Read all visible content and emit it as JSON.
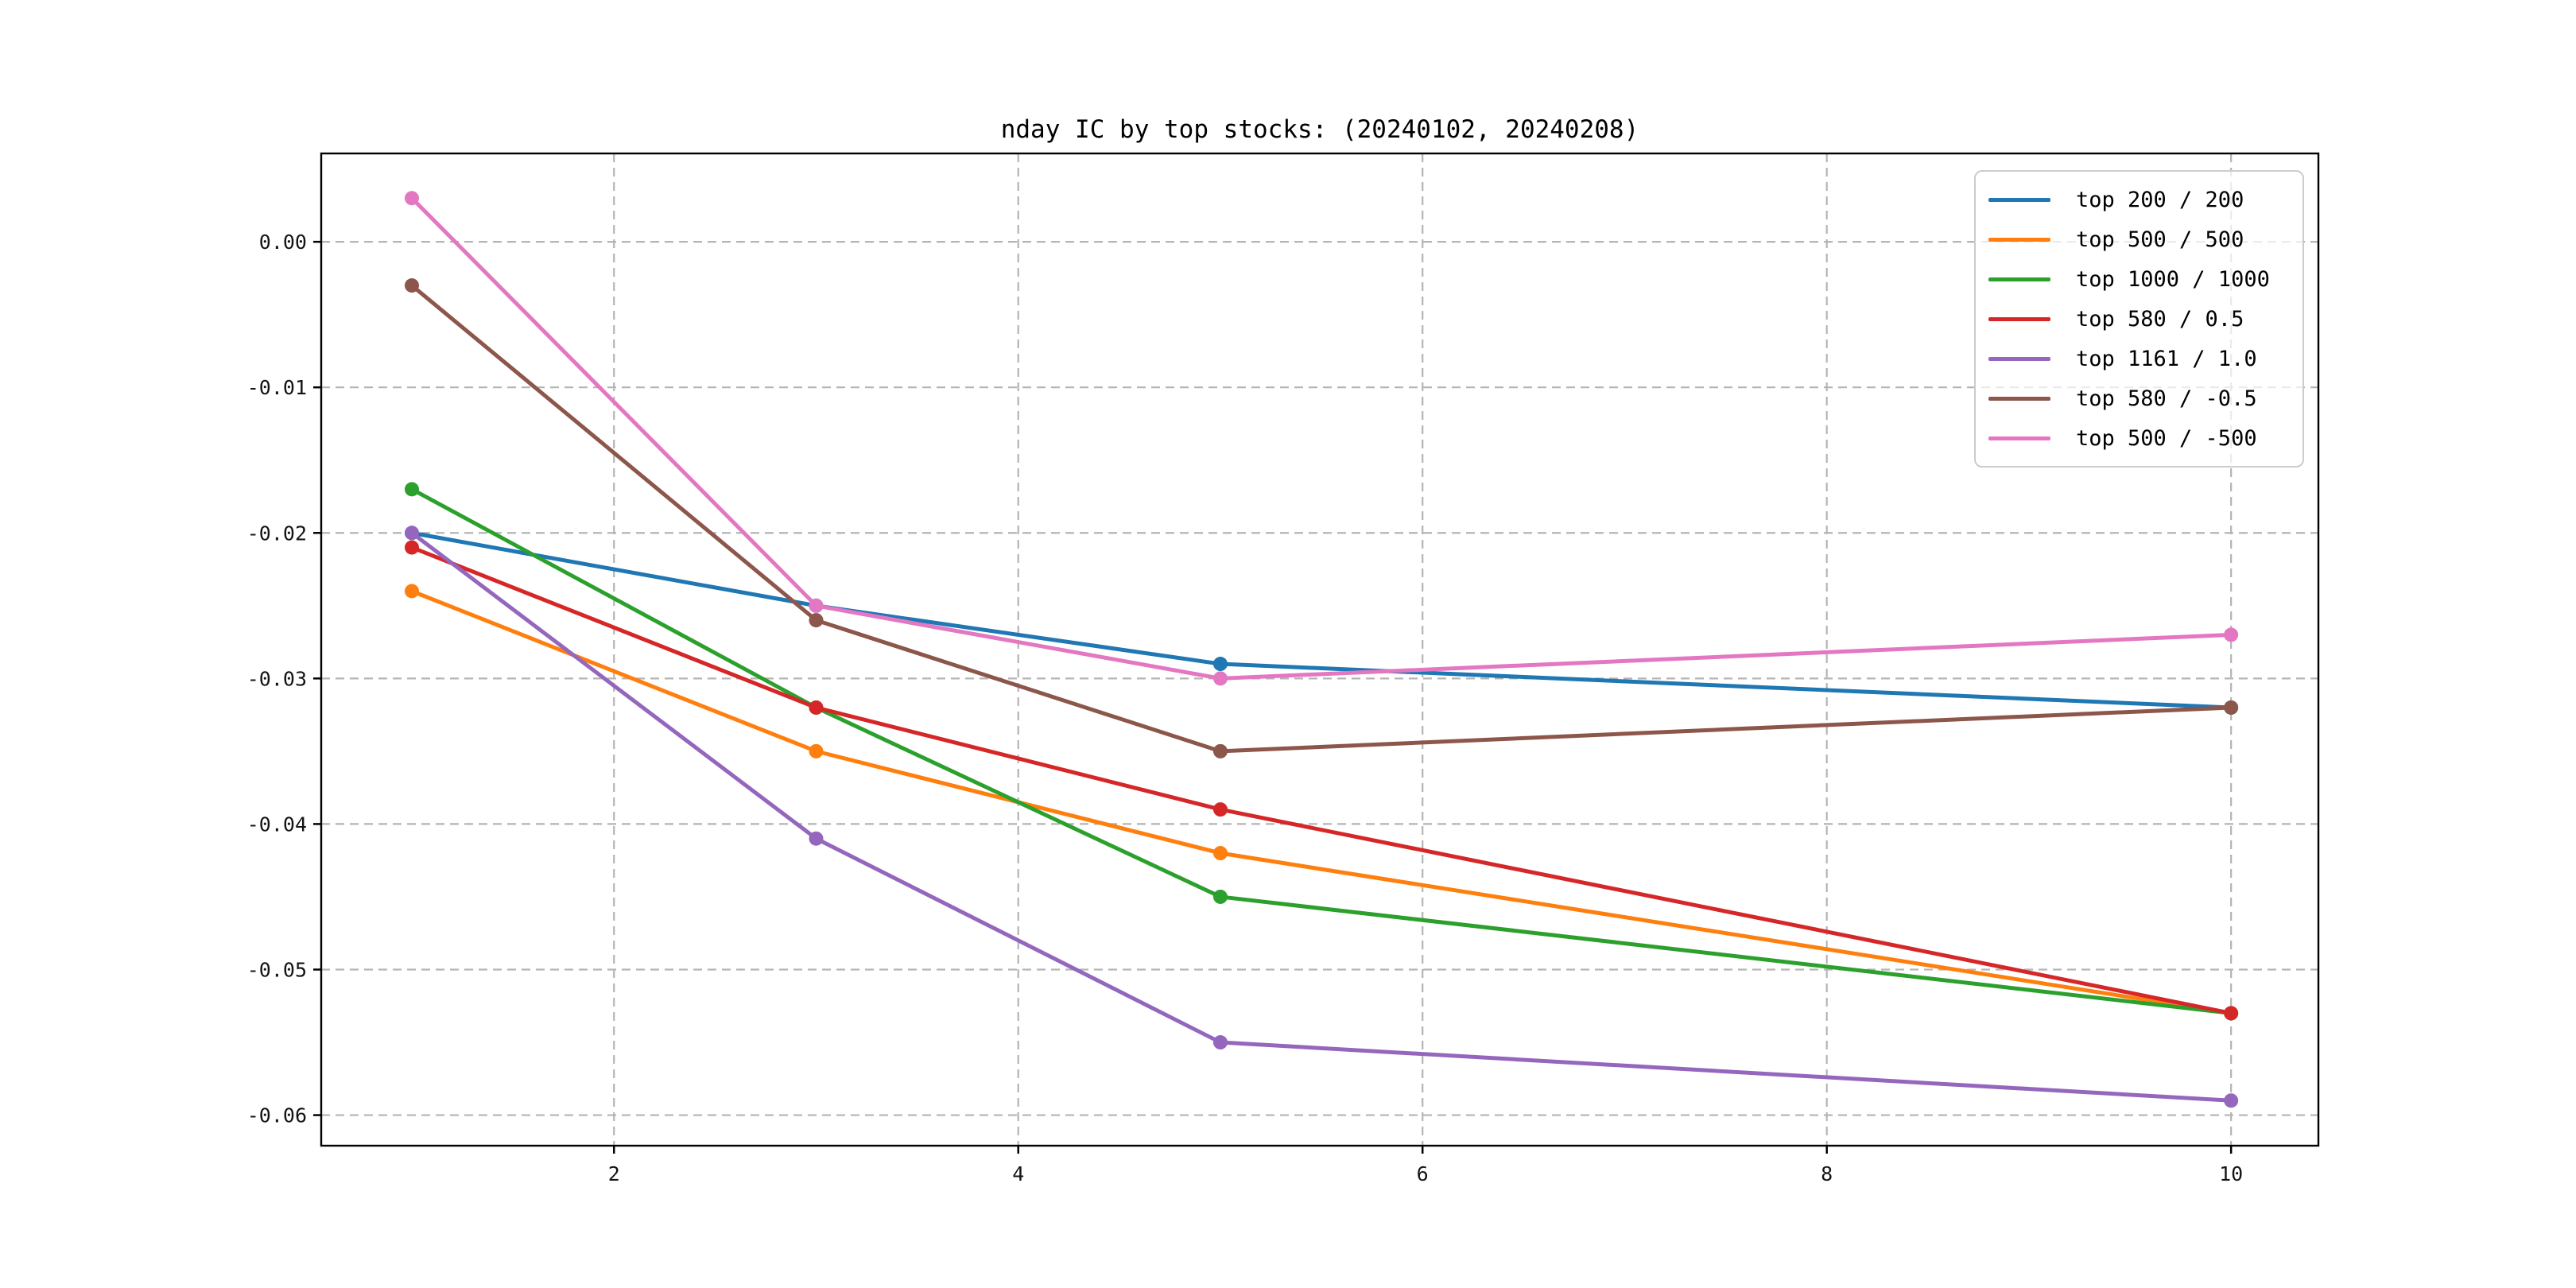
{
  "chart_data": {
    "type": "line",
    "title": "nday IC by top stocks: (20240102, 20240208)",
    "x": [
      1,
      3,
      5,
      10
    ],
    "series": [
      {
        "name": "top 200 / 200",
        "color": "#1f77b4",
        "values": [
          -0.02,
          -0.025,
          -0.029,
          -0.032
        ]
      },
      {
        "name": "top 500 / 500",
        "color": "#ff7f0e",
        "values": [
          -0.024,
          -0.035,
          -0.042,
          -0.053
        ]
      },
      {
        "name": "top 1000 / 1000",
        "color": "#2ca02c",
        "values": [
          -0.017,
          -0.032,
          -0.045,
          -0.053
        ]
      },
      {
        "name": "top 580 / 0.5",
        "color": "#d62728",
        "values": [
          -0.021,
          -0.032,
          -0.039,
          -0.053
        ]
      },
      {
        "name": "top 1161 / 1.0",
        "color": "#9467bd",
        "values": [
          -0.02,
          -0.041,
          -0.055,
          -0.059
        ]
      },
      {
        "name": "top 580 / -0.5",
        "color": "#8c564b",
        "values": [
          -0.003,
          -0.026,
          -0.035,
          -0.032
        ]
      },
      {
        "name": "top 500 / -500",
        "color": "#e377c2",
        "values": [
          0.003,
          -0.025,
          -0.03,
          -0.027
        ]
      }
    ],
    "xticks": [
      2,
      4,
      6,
      8,
      10
    ],
    "xtick_labels": [
      "2",
      "4",
      "6",
      "8",
      "10"
    ],
    "yticks": [
      0,
      -0.01,
      -0.02,
      -0.03,
      -0.04,
      -0.05,
      -0.06
    ],
    "ytick_labels": [
      "0.00",
      "-0.01",
      "-0.02",
      "-0.03",
      "-0.04",
      "-0.05",
      "-0.06"
    ],
    "xlim": [
      0.5516,
      10.432
    ],
    "ylim": [
      -0.0621,
      0.00607
    ],
    "grid": true,
    "grid_style": "dashed",
    "marker": "o",
    "legend_position": "upper right",
    "colors": {
      "grid": "#b4b4b4",
      "spine": "#000000",
      "background": "#ffffff",
      "legend_border": "#cccccc",
      "text": "#000000"
    }
  }
}
